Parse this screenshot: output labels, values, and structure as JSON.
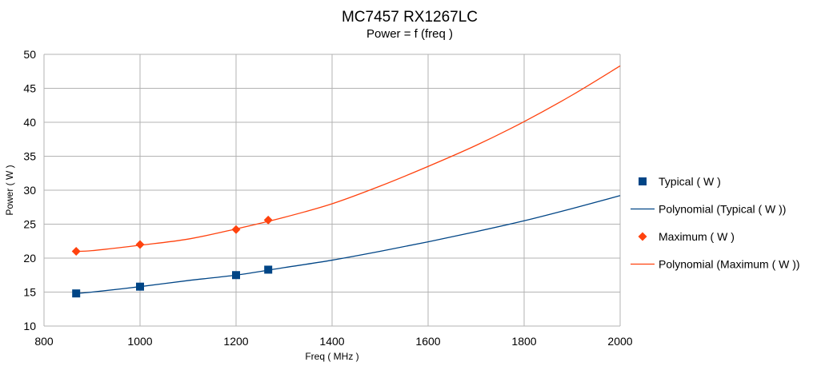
{
  "chart_data": {
    "type": "scatter",
    "title": "MC7457 RX1267LC",
    "subtitle": "Power = f (freq )",
    "xlabel": "Freq ( MHz )",
    "ylabel": "Power ( W )",
    "xlim": [
      800,
      2000
    ],
    "ylim": [
      10,
      50
    ],
    "xticks": [
      800,
      1000,
      1200,
      1400,
      1600,
      1800,
      2000
    ],
    "yticks": [
      10,
      15,
      20,
      25,
      30,
      35,
      40,
      45,
      50
    ],
    "grid": true,
    "legend_position": "right",
    "series": [
      {
        "name": "Typical ( W )",
        "kind": "points",
        "marker": "square",
        "color": "#004586",
        "x": [
          867,
          1000,
          1200,
          1267
        ],
        "y": [
          14.8,
          15.8,
          17.5,
          18.3
        ]
      },
      {
        "name": "Polynomial (Typical ( W ))",
        "kind": "trendline",
        "color": "#004586",
        "x": [
          867,
          900,
          1000,
          1100,
          1200,
          1300,
          1400,
          1500,
          1600,
          1700,
          1800,
          1900,
          2000
        ],
        "y": [
          14.8,
          15.0,
          15.8,
          16.7,
          17.5,
          18.6,
          19.7,
          21.0,
          22.4,
          23.9,
          25.5,
          27.3,
          29.2
        ]
      },
      {
        "name": "Maximum ( W )",
        "kind": "points",
        "marker": "diamond",
        "color": "#ff420e",
        "x": [
          867,
          1000,
          1200,
          1267
        ],
        "y": [
          21.0,
          22.0,
          24.2,
          25.6
        ]
      },
      {
        "name": "Polynomial (Maximum ( W ))",
        "kind": "trendline",
        "color": "#ff420e",
        "x": [
          867,
          900,
          1000,
          1100,
          1200,
          1300,
          1400,
          1500,
          1600,
          1700,
          1800,
          1900,
          2000
        ],
        "y": [
          21.0,
          21.1,
          21.9,
          22.8,
          24.3,
          26.0,
          28.0,
          30.6,
          33.5,
          36.6,
          40.1,
          44.0,
          48.3
        ]
      }
    ]
  }
}
